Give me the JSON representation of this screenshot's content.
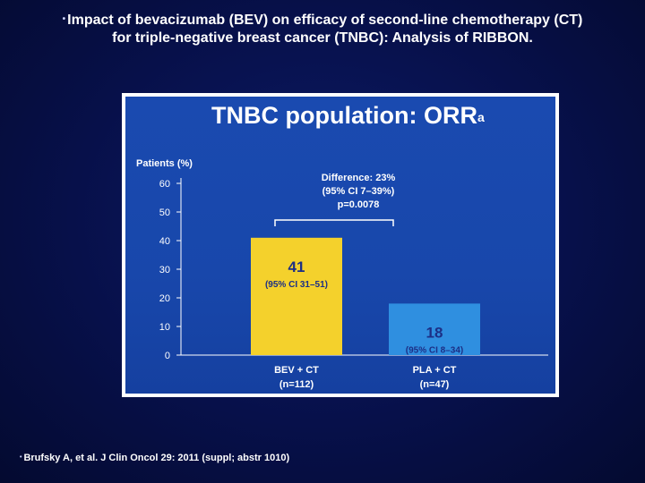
{
  "slide_title": {
    "line1": "Impact of bevacizumab (BEV) on efficacy of second-line chemotherapy (CT)",
    "line2": "for triple-negative breast cancer (TNBC): Analysis of RIBBON."
  },
  "panel_title": "TNBC population: ORR",
  "panel_title_sup": "a",
  "footnote": "Brufsky A, et al. J Clin Oncol 29: 2011 (suppl; abstr 1010)",
  "colors": {
    "bev_bar": "#f4d12c",
    "pla_bar": "#2f8fe0",
    "panel_bg": "#1a4ab0",
    "value_text": "#1c2f86"
  },
  "chart_data": {
    "type": "bar",
    "ylabel": "Patients (%)",
    "ylim": [
      0,
      60
    ],
    "yticks": [
      0,
      10,
      20,
      30,
      40,
      50,
      60
    ],
    "grid": false,
    "categories": [
      {
        "label": "BEV + CT",
        "n": "(n=112)"
      },
      {
        "label": "PLA + CT",
        "n": "(n=47)"
      }
    ],
    "values": [
      41,
      18
    ],
    "value_labels": [
      "41",
      "18"
    ],
    "ci_labels": [
      "(95% CI 31–51)",
      "(95% CI 8–34)"
    ],
    "annotation": {
      "lines": [
        "Difference: 23%",
        "(95% CI 7–39%)",
        "p=0.0078"
      ]
    }
  }
}
